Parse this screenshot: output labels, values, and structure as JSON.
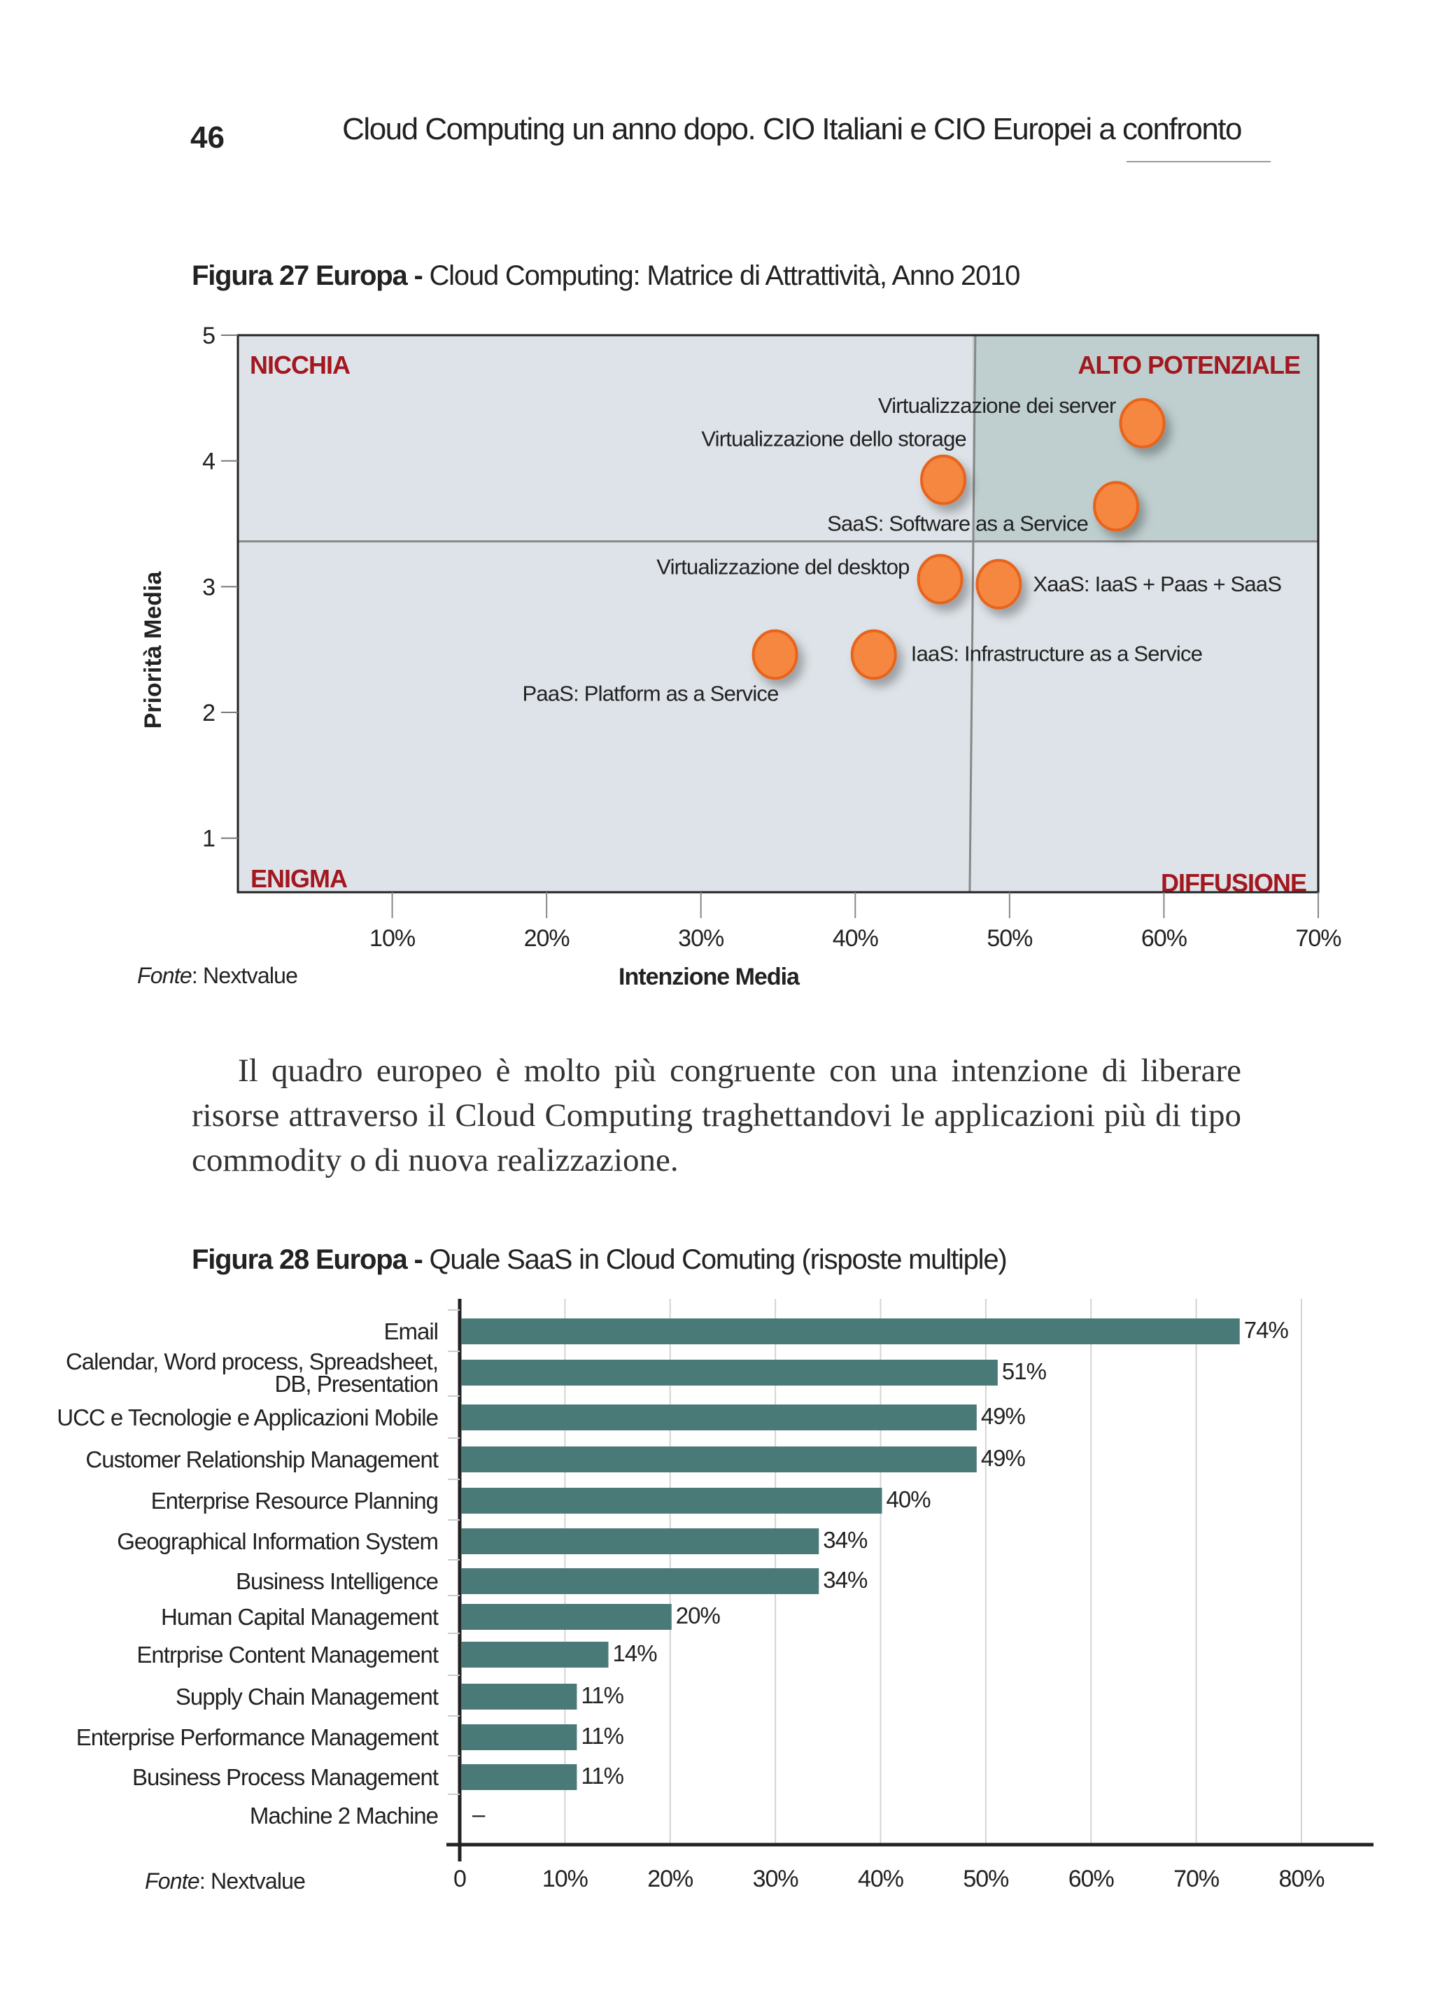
{
  "header": {
    "page_number": "46",
    "title": "Cloud Computing un anno dopo. CIO Italiani e CIO Europei a confronto"
  },
  "figure27": {
    "label": "Figura 27 Europa -",
    "caption": " Cloud Computing: Matrice di Attrattività, Anno 2010",
    "source_prefix": "Fonte",
    "source": ": Nextvalue"
  },
  "paragraph": "Il quadro europeo è molto più congruente con una intenzione di liberare risorse attraverso il Cloud Computing traghettandovi le applicazioni più di tipo commodity o di nuova realizzazione.",
  "figure28": {
    "label": "Figura 28 Europa -",
    "caption": " Quale SaaS in Cloud Comuting (risposte multiple)",
    "source_prefix": "Fonte",
    "source": ": Nextvalue"
  },
  "chart_data": [
    {
      "type": "scatter",
      "xlabel": "Intenzione Media",
      "ylabel": "Priorità Media",
      "xlim": [
        0,
        70
      ],
      "ylim": [
        0.57,
        5
      ],
      "x_ticks": [
        "10%",
        "20%",
        "30%",
        "40%",
        "50%",
        "60%",
        "70%"
      ],
      "x_tick_values": [
        10,
        20,
        30,
        40,
        50,
        60,
        70
      ],
      "y_ticks": [
        1,
        2,
        3,
        4,
        5
      ],
      "quadrant_split": {
        "x": 47.6,
        "y": 3.36
      },
      "quadrants": {
        "top_left": "NICCHIA",
        "top_right": "ALTO POTENZIALE",
        "bottom_left": "ENIGMA",
        "bottom_right": "DIFFUSIONE"
      },
      "points": [
        {
          "label": "Virtualizzazione dei server",
          "x": 58.6,
          "y": 4.3
        },
        {
          "label": "Virtualizzazione dello storage",
          "x": 45.7,
          "y": 3.85
        },
        {
          "label": "SaaS: Software as a Service",
          "x": 56.9,
          "y": 3.64
        },
        {
          "label": "Virtualizzazione del desktop",
          "x": 45.5,
          "y": 3.06
        },
        {
          "label": "XaaS: IaaS + Paas + SaaS",
          "x": 49.3,
          "y": 3.02
        },
        {
          "label": "IaaS: Infrastructure as a Service",
          "x": 41.2,
          "y": 2.46
        },
        {
          "label": "PaaS: Platform as a Service",
          "x": 34.8,
          "y": 2.46
        }
      ],
      "colors": {
        "point": "#f5873f",
        "point_stroke": "#e8641b",
        "quadrant": "#dde3e8",
        "quadrant_highlight": "#bfcfcf",
        "quadrant_label": "#a3171f"
      }
    },
    {
      "type": "bar",
      "orientation": "horizontal",
      "categories": [
        "Email",
        "Calendar, Word process, Spreadsheet,\nDB, Presentation",
        "UCC e Tecnologie e Applicazioni Mobile",
        "Customer Relationship Management",
        "Enterprise Resource Planning",
        "Geographical Information System",
        "Business Intelligence",
        "Human Capital Management",
        "Entrprise Content Management",
        "Supply Chain Management",
        "Enterprise Performance Management",
        "Business Process Management",
        "Machine 2 Machine"
      ],
      "values": [
        74,
        51,
        49,
        49,
        40,
        34,
        34,
        20,
        14,
        11,
        11,
        11,
        null
      ],
      "data_labels": [
        "74%",
        "51%",
        "49%",
        "49%",
        "40%",
        "34%",
        "34%",
        "20%",
        "14%",
        "11%",
        "11%",
        "11%",
        "–"
      ],
      "xlim": [
        0,
        80
      ],
      "x_ticks": [
        "0",
        "10%",
        "20%",
        "30%",
        "40%",
        "50%",
        "60%",
        "70%",
        "80%"
      ],
      "grid": true,
      "colors": {
        "bar": "#4a7a78",
        "grid": "#d4d4d4"
      }
    }
  ]
}
